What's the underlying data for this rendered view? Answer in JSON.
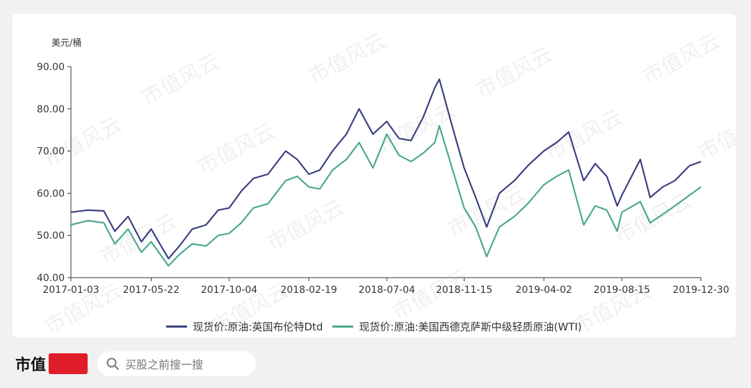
{
  "chart_data": {
    "type": "line",
    "y_unit_label": "美元/桶",
    "ylim": [
      40,
      90
    ],
    "y_ticks": [
      "90.00",
      "80.00",
      "70.00",
      "60.00",
      "50.00",
      "40.00"
    ],
    "x_ticks": [
      "2017-01-03",
      "2017-05-22",
      "2017-10-04",
      "2018-02-19",
      "2018-07-04",
      "2018-11-15",
      "2019-04-02",
      "2019-08-15",
      "2019-12-30"
    ],
    "grid": false,
    "legend_position": "bottom",
    "series": [
      {
        "name": "现货价:原油:英国布伦特Dtd",
        "color": "#3b3f80",
        "x": [
          "2017-01-03",
          "2017-02-01",
          "2017-03-01",
          "2017-03-20",
          "2017-04-12",
          "2017-05-05",
          "2017-05-22",
          "2017-06-21",
          "2017-07-10",
          "2017-08-01",
          "2017-08-25",
          "2017-09-15",
          "2017-10-04",
          "2017-10-25",
          "2017-11-15",
          "2017-12-10",
          "2018-01-10",
          "2018-01-30",
          "2018-02-19",
          "2018-03-10",
          "2018-04-01",
          "2018-04-25",
          "2018-05-17",
          "2018-06-10",
          "2018-07-04",
          "2018-07-25",
          "2018-08-15",
          "2018-09-05",
          "2018-09-25",
          "2018-10-03",
          "2018-10-25",
          "2018-11-15",
          "2018-12-05",
          "2018-12-24",
          "2019-01-15",
          "2019-02-10",
          "2019-03-05",
          "2019-04-02",
          "2019-04-24",
          "2019-05-15",
          "2019-06-10",
          "2019-06-30",
          "2019-07-20",
          "2019-08-07",
          "2019-08-15",
          "2019-09-16",
          "2019-10-03",
          "2019-10-25",
          "2019-11-15",
          "2019-12-10",
          "2019-12-30"
        ],
        "values": [
          55.5,
          56.0,
          55.8,
          51.0,
          54.5,
          48.5,
          51.5,
          44.5,
          47.5,
          51.5,
          52.5,
          56.0,
          56.5,
          60.5,
          63.5,
          64.5,
          70.0,
          68.0,
          64.5,
          65.5,
          70.0,
          74.0,
          80.0,
          74.0,
          77.0,
          73.0,
          72.5,
          78.0,
          85.0,
          87.0,
          76.0,
          66.0,
          59.0,
          52.0,
          60.0,
          63.0,
          66.5,
          70.0,
          72.0,
          74.5,
          63.0,
          67.0,
          64.0,
          57.0,
          59.5,
          68.0,
          59.0,
          61.5,
          63.0,
          66.5,
          67.5
        ]
      },
      {
        "name": "现货价:原油:美国西德克萨斯中级轻质原油(WTI)",
        "color": "#4ba88e",
        "x": [
          "2017-01-03",
          "2017-02-01",
          "2017-03-01",
          "2017-03-20",
          "2017-04-12",
          "2017-05-05",
          "2017-05-22",
          "2017-06-21",
          "2017-07-10",
          "2017-08-01",
          "2017-08-25",
          "2017-09-15",
          "2017-10-04",
          "2017-10-25",
          "2017-11-15",
          "2017-12-10",
          "2018-01-10",
          "2018-01-30",
          "2018-02-19",
          "2018-03-10",
          "2018-04-01",
          "2018-04-25",
          "2018-05-17",
          "2018-06-10",
          "2018-07-04",
          "2018-07-25",
          "2018-08-15",
          "2018-09-05",
          "2018-09-25",
          "2018-10-03",
          "2018-10-25",
          "2018-11-15",
          "2018-12-05",
          "2018-12-24",
          "2019-01-15",
          "2019-02-10",
          "2019-03-05",
          "2019-04-02",
          "2019-04-24",
          "2019-05-15",
          "2019-06-10",
          "2019-06-30",
          "2019-07-20",
          "2019-08-07",
          "2019-08-15",
          "2019-09-16",
          "2019-10-03",
          "2019-10-25",
          "2019-11-15",
          "2019-12-10",
          "2019-12-30"
        ],
        "values": [
          52.5,
          53.5,
          53.0,
          48.0,
          51.5,
          46.0,
          48.5,
          42.8,
          45.5,
          48.0,
          47.5,
          50.0,
          50.5,
          53.0,
          56.5,
          57.5,
          63.0,
          64.0,
          61.5,
          61.0,
          65.5,
          68.0,
          72.0,
          66.0,
          74.0,
          69.0,
          67.5,
          69.5,
          72.0,
          76.0,
          66.0,
          56.5,
          52.0,
          45.0,
          52.0,
          54.5,
          57.5,
          62.0,
          64.0,
          65.5,
          52.5,
          57.0,
          56.0,
          51.0,
          55.5,
          58.0,
          53.0,
          55.0,
          57.0,
          59.5,
          61.5
        ]
      }
    ]
  },
  "watermark_text": "市值风云",
  "footer": {
    "logo_text": "市值",
    "search_placeholder": "买股之前搜一搜",
    "search_icon": "search-icon"
  }
}
